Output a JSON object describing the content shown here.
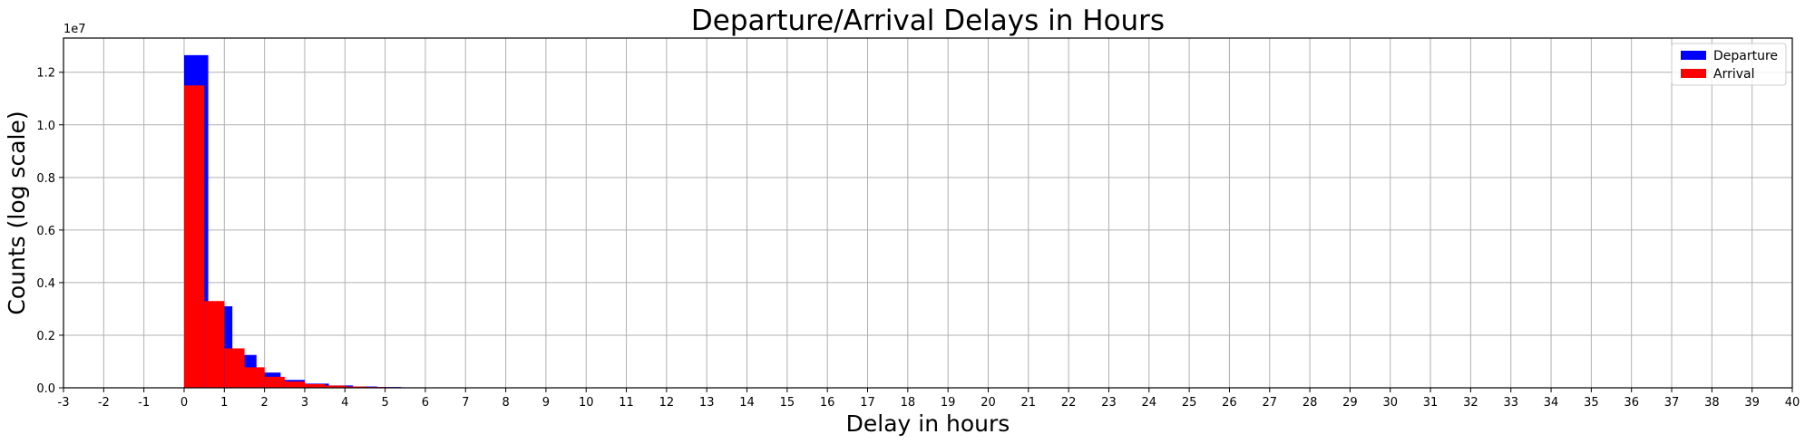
{
  "chart_data": {
    "type": "bar",
    "title": "Departure/Arrival Delays in Hours",
    "xlabel": "Delay in hours",
    "ylabel": "Counts (log scale)",
    "y_offset_label": "1e7",
    "xlim": [
      -3,
      40
    ],
    "ylim": [
      0,
      13300000
    ],
    "grid": true,
    "legend_position": "top-right",
    "x_ticks": [
      -3,
      -2,
      -1,
      0,
      1,
      2,
      3,
      4,
      5,
      6,
      7,
      8,
      9,
      10,
      11,
      12,
      13,
      14,
      15,
      16,
      17,
      18,
      19,
      20,
      21,
      22,
      23,
      24,
      25,
      26,
      27,
      28,
      29,
      30,
      31,
      32,
      33,
      34,
      35,
      36,
      37,
      38,
      39,
      40
    ],
    "y_ticks": [
      0,
      2000000,
      4000000,
      6000000,
      8000000,
      10000000,
      12000000
    ],
    "y_tick_labels": [
      "0.0",
      "0.2",
      "0.4",
      "0.6",
      "0.8",
      "1.0",
      "1.2"
    ],
    "series": [
      {
        "name": "Departure",
        "color": "#0000ff",
        "bin_edges": [
          0,
          0.6,
          1.2,
          1.8,
          2.4,
          3.0,
          3.6,
          4.2,
          4.8,
          5.4,
          6.0,
          6.6,
          7.2,
          7.8
        ],
        "values": [
          12650000,
          3100000,
          1250000,
          580000,
          300000,
          160000,
          90000,
          50000,
          30000,
          18000,
          10000,
          6000,
          3000
        ]
      },
      {
        "name": "Arrival",
        "color": "#ff0000",
        "bin_edges": [
          0,
          0.5,
          1.0,
          1.5,
          2.0,
          2.5,
          3.0,
          3.5,
          4.0,
          4.5,
          5.0,
          5.5,
          6.0,
          6.5,
          7.0,
          7.5
        ],
        "values": [
          11500000,
          3300000,
          1500000,
          780000,
          420000,
          240000,
          140000,
          85000,
          50000,
          30000,
          20000,
          12000,
          8000,
          5000,
          3000
        ]
      }
    ]
  }
}
